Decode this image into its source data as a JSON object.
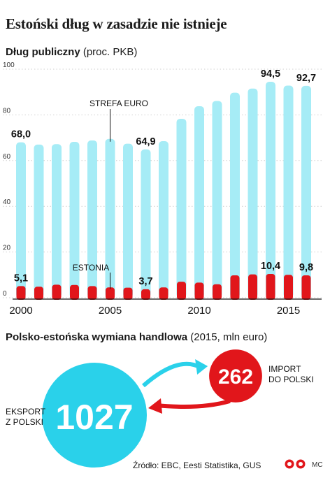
{
  "title": "Estoński dług w zasadzie nie istnieje",
  "chart_subtitle": {
    "bold": "Dług publiczny",
    "rest": " (proc. PKB)"
  },
  "chart_data": [
    {
      "type": "bar",
      "title": "",
      "x": [
        2000,
        2001,
        2002,
        2003,
        2004,
        2005,
        2006,
        2007,
        2008,
        2009,
        2010,
        2011,
        2012,
        2013,
        2014,
        2015,
        2016
      ],
      "xticks": [
        "2000",
        "2005",
        "2010",
        "2015"
      ],
      "yticks": [
        "0",
        "20",
        "40",
        "60",
        "80",
        "100"
      ],
      "ylim": [
        0,
        100
      ],
      "grid": true,
      "series": [
        {
          "name": "STREFA EURO",
          "color": "#a6ecf6",
          "values": [
            68.0,
            67.0,
            67.2,
            68.2,
            68.8,
            69.5,
            67.4,
            64.9,
            68.5,
            78.3,
            83.8,
            86.1,
            89.7,
            91.5,
            94.5,
            92.8,
            92.7
          ]
        },
        {
          "name": "ESTONIA",
          "color": "#e1161b",
          "values": [
            5.1,
            4.8,
            5.7,
            5.6,
            5.1,
            4.5,
            4.4,
            3.7,
            4.5,
            7.0,
            6.6,
            5.9,
            9.8,
            10.2,
            10.4,
            10.0,
            9.8
          ]
        }
      ],
      "labels": [
        {
          "text": "68,0",
          "series": 0,
          "index": 0
        },
        {
          "text": "64,9",
          "series": 0,
          "index": 7
        },
        {
          "text": "94,5",
          "series": 0,
          "index": 14
        },
        {
          "text": "92,7",
          "series": 0,
          "index": 16
        },
        {
          "text": "5,1",
          "series": 1,
          "index": 0
        },
        {
          "text": "3,7",
          "series": 1,
          "index": 7
        },
        {
          "text": "10,4",
          "series": 1,
          "index": 14
        },
        {
          "text": "9,8",
          "series": 1,
          "index": 16
        }
      ]
    },
    {
      "type": "bubble",
      "title": "",
      "bubbles": [
        {
          "label": "EKSPORT\nZ POLSKI",
          "value": 1027,
          "color": "#2ad1ea"
        },
        {
          "label": "IMPORT\nDO POLSKI",
          "value": 262,
          "color": "#e1161b"
        }
      ]
    }
  ],
  "trade_subtitle": {
    "bold": "Polsko-estońska wymiana handlowa",
    "rest": " (2015, mln euro)"
  },
  "source": "Źródło: EBC, Eesti Statistika, GUS",
  "credit": "MC",
  "colors": {
    "euro": "#a6ecf6",
    "estonia": "#e1161b",
    "export": "#2ad1ea",
    "import": "#e1161b",
    "grid": "#cfcfcf"
  }
}
